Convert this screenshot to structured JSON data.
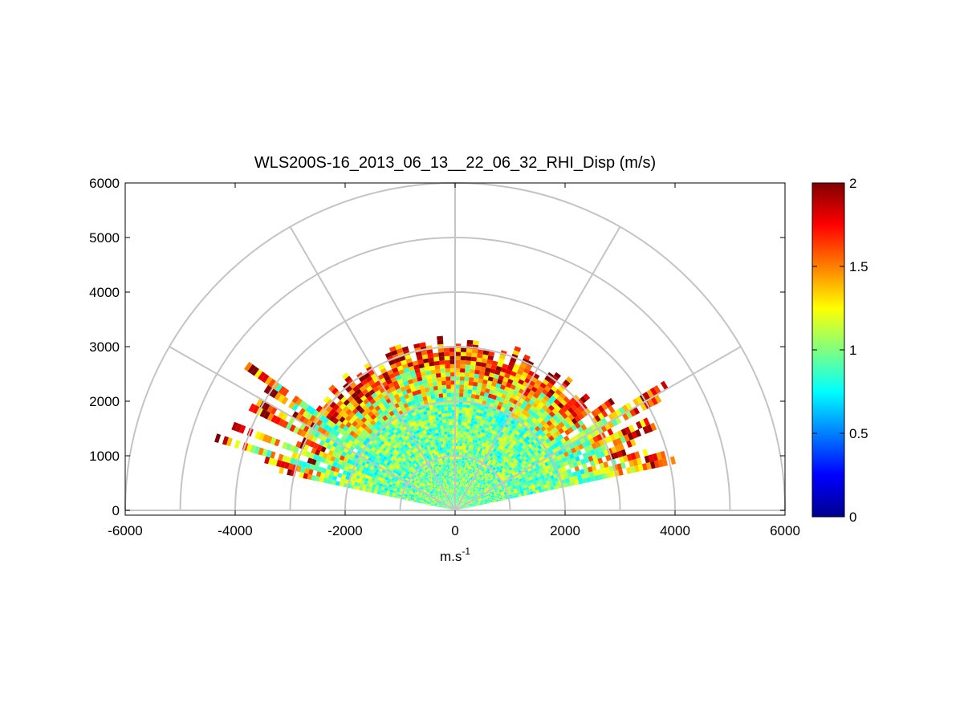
{
  "chart_data": {
    "type": "heatmap",
    "subtype": "polar-rhi-sector",
    "title": "WLS200S-16_2013_06_13__22_06_32_RHI_Disp (m/s)",
    "xlabel_base": "m.s",
    "xlabel_exp": "-1",
    "ylabel": "",
    "xlim": [
      -6000,
      6000
    ],
    "ylim": [
      0,
      6000
    ],
    "x_ticks": [
      -6000,
      -4000,
      -2000,
      0,
      2000,
      4000,
      6000
    ],
    "x_tick_labels": [
      "-6000",
      "-4000",
      "-2000",
      "0",
      "2000",
      "4000",
      "6000"
    ],
    "y_ticks": [
      0,
      1000,
      2000,
      3000,
      4000,
      5000,
      6000
    ],
    "y_tick_labels": [
      "0",
      "1000",
      "2000",
      "3000",
      "4000",
      "5000",
      "6000"
    ],
    "polar_grid": {
      "range_rings_m": [
        1000,
        2000,
        3000,
        4000,
        5000,
        6000
      ],
      "spoke_angles_deg": [
        0,
        30,
        60,
        90,
        120,
        150,
        180
      ]
    },
    "scan": {
      "elevation_min_deg": 12,
      "elevation_max_deg": 168,
      "max_range_m": 4600,
      "typical_max_range_m": 3000,
      "dominant_value_ms": 1.0
    },
    "colorbar": {
      "colormap": "jet",
      "vmin": 0,
      "vmax": 2,
      "ticks": [
        0,
        0.5,
        1,
        1.5,
        2
      ],
      "tick_labels": [
        "0",
        "0.5",
        "1",
        "1.5",
        "2"
      ]
    },
    "grid": true
  }
}
